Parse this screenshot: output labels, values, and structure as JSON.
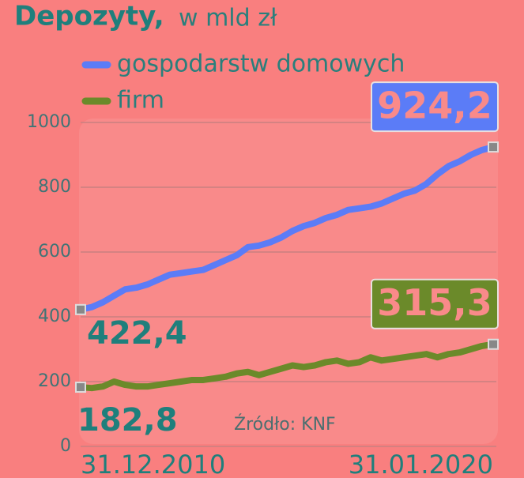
{
  "chart_data": {
    "type": "line",
    "title": "Depozyty,",
    "subtitle": "w mld zł",
    "source": "Źródło: KNF",
    "categories": [
      "31.12.2010",
      null,
      null,
      null,
      null,
      null,
      null,
      null,
      null,
      null,
      null,
      null,
      null,
      null,
      null,
      null,
      null,
      null,
      null,
      null,
      null,
      null,
      null,
      null,
      null,
      null,
      null,
      null,
      null,
      null,
      null,
      null,
      null,
      null,
      null,
      null,
      null,
      "31.01.2020"
    ],
    "series": [
      {
        "name": "gospodarstw domowych",
        "color": "#5b7cf7",
        "values": [
          422.4,
          430,
          445,
          465,
          485,
          490,
          500,
          515,
          530,
          535,
          540,
          545,
          560,
          575,
          590,
          615,
          620,
          630,
          645,
          665,
          680,
          690,
          705,
          715,
          730,
          735,
          740,
          750,
          765,
          780,
          790,
          810,
          840,
          865,
          880,
          900,
          915,
          924.2
        ],
        "value_labels": [
          "422,4",
          null,
          null,
          null,
          null,
          null,
          null,
          null,
          null,
          null,
          null,
          null,
          null,
          null,
          null,
          null,
          null,
          null,
          null,
          null,
          null,
          null,
          null,
          null,
          null,
          null,
          null,
          null,
          null,
          null,
          null,
          null,
          null,
          null,
          null,
          null,
          null,
          "924,2"
        ]
      },
      {
        "name": "firm",
        "color": "#6b8a2a",
        "values": [
          182.8,
          180,
          185,
          200,
          190,
          185,
          185,
          190,
          195,
          200,
          205,
          205,
          210,
          215,
          225,
          230,
          220,
          230,
          240,
          250,
          245,
          250,
          260,
          265,
          255,
          260,
          275,
          265,
          270,
          275,
          280,
          285,
          275,
          285,
          290,
          300,
          310,
          315.3
        ],
        "value_labels": [
          "182,8",
          null,
          null,
          null,
          null,
          null,
          null,
          null,
          null,
          null,
          null,
          null,
          null,
          null,
          null,
          null,
          null,
          null,
          null,
          null,
          null,
          null,
          null,
          null,
          null,
          null,
          null,
          null,
          null,
          null,
          null,
          null,
          null,
          null,
          null,
          null,
          null,
          "315,3"
        ]
      }
    ],
    "ylim": [
      0,
      1000
    ],
    "yticks": [
      0,
      200,
      400,
      600,
      800,
      1000
    ],
    "grid": true
  }
}
